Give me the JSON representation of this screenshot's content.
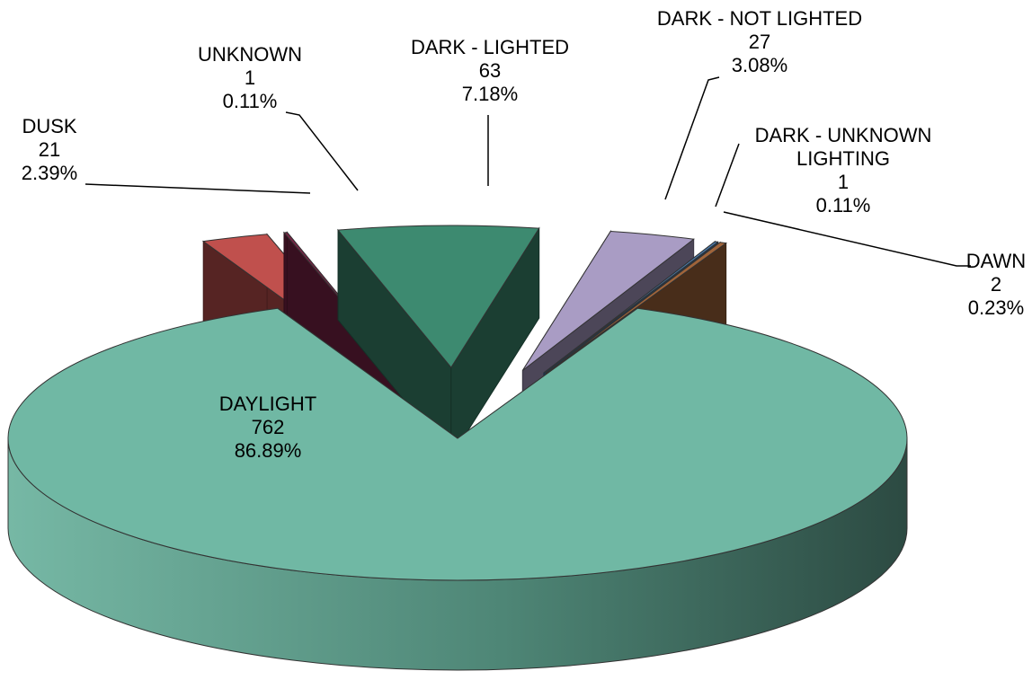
{
  "chart_data": {
    "type": "pie",
    "categories": [
      "DUSK",
      "UNKNOWN",
      "DARK - LIGHTED",
      "DARK - NOT LIGHTED",
      "DARK - UNKNOWN LIGHTING",
      "DAWN",
      "DAYLIGHT"
    ],
    "values": [
      21,
      1,
      63,
      27,
      1,
      2,
      762
    ],
    "percentages": [
      2.39,
      0.11,
      7.18,
      3.08,
      0.11,
      0.23,
      86.89
    ],
    "percentage_labels": [
      "2.39%",
      "0.11%",
      "7.18%",
      "3.08%",
      "0.11%",
      "0.23%",
      "86.89%"
    ],
    "colors": [
      "#c0504d",
      "#7a2446",
      "#3d8a70",
      "#a99cc4",
      "#4a7fb5",
      "#a0643a",
      "#70b8a4"
    ]
  }
}
